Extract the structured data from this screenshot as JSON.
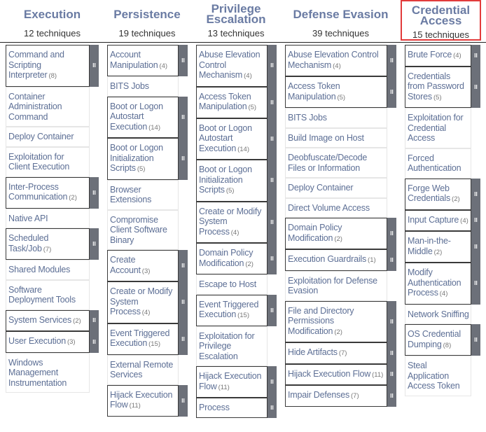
{
  "tactics": [
    {
      "title": "Execution",
      "count": "12 techniques",
      "selected": false,
      "techniques": [
        {
          "name": "Command and Scripting Interpreter",
          "count": "(8)",
          "sub": true
        },
        {
          "name": "Container Administration Command",
          "sub": false
        },
        {
          "name": "Deploy Container",
          "sub": false
        },
        {
          "name": "Exploitation for Client Execution",
          "sub": false
        },
        {
          "name": "Inter-Process Communication",
          "count": "(2)",
          "sub": true
        },
        {
          "name": "Native API",
          "sub": false
        },
        {
          "name": "Scheduled Task/Job",
          "count": "(7)",
          "sub": true
        },
        {
          "name": "Shared Modules",
          "sub": false
        },
        {
          "name": "Software Deployment Tools",
          "sub": false
        },
        {
          "name": "System Services",
          "count": "(2)",
          "sub": true
        },
        {
          "name": "User Execution",
          "count": "(3)",
          "sub": true
        },
        {
          "name": "Windows Management Instrumentation",
          "sub": false
        }
      ]
    },
    {
      "title": "Persistence",
      "count": "19 techniques",
      "selected": false,
      "techniques": [
        {
          "name": "Account Manipulation",
          "count": "(4)",
          "sub": true
        },
        {
          "name": "BITS Jobs",
          "sub": false
        },
        {
          "name": "Boot or Logon Autostart Execution",
          "count": "(14)",
          "sub": true
        },
        {
          "name": "Boot or Logon Initialization Scripts",
          "count": "(5)",
          "sub": true
        },
        {
          "name": "Browser Extensions",
          "sub": false
        },
        {
          "name": "Compromise Client Software Binary",
          "sub": false
        },
        {
          "name": "Create Account",
          "count": "(3)",
          "sub": true
        },
        {
          "name": "Create or Modify System Process",
          "count": "(4)",
          "sub": true
        },
        {
          "name": "Event Triggered Execution",
          "count": "(15)",
          "sub": true
        },
        {
          "name": "External Remote Services",
          "sub": false
        },
        {
          "name": "Hijack Execution Flow",
          "count": "(11)",
          "sub": true
        }
      ]
    },
    {
      "title": "Privilege Escalation",
      "count": "13 techniques",
      "selected": false,
      "techniques": [
        {
          "name": "Abuse Elevation Control Mechanism",
          "count": "(4)",
          "sub": true
        },
        {
          "name": "Access Token Manipulation",
          "count": "(5)",
          "sub": true
        },
        {
          "name": "Boot or Logon Autostart Execution",
          "count": "(14)",
          "sub": true
        },
        {
          "name": "Boot or Logon Initialization Scripts",
          "count": "(5)",
          "sub": true
        },
        {
          "name": "Create or Modify System Process",
          "count": "(4)",
          "sub": true
        },
        {
          "name": "Domain Policy Modification",
          "count": "(2)",
          "sub": true
        },
        {
          "name": "Escape to Host",
          "sub": false
        },
        {
          "name": "Event Triggered Execution",
          "count": "(15)",
          "sub": true
        },
        {
          "name": "Exploitation for Privilege Escalation",
          "sub": false
        },
        {
          "name": "Hijack Execution Flow",
          "count": "(11)",
          "sub": true
        },
        {
          "name": "Process",
          "sub": true
        }
      ]
    },
    {
      "title": "Defense Evasion",
      "count": "39 techniques",
      "selected": false,
      "techniques": [
        {
          "name": "Abuse Elevation Control Mechanism",
          "count": "(4)",
          "sub": true
        },
        {
          "name": "Access Token Manipulation",
          "count": "(5)",
          "sub": true
        },
        {
          "name": "BITS Jobs",
          "sub": false
        },
        {
          "name": "Build Image on Host",
          "sub": false
        },
        {
          "name": "Deobfuscate/Decode Files or Information",
          "sub": false
        },
        {
          "name": "Deploy Container",
          "sub": false
        },
        {
          "name": "Direct Volume Access",
          "sub": false
        },
        {
          "name": "Domain Policy Modification",
          "count": "(2)",
          "sub": true
        },
        {
          "name": "Execution Guardrails",
          "count": "(1)",
          "sub": true
        },
        {
          "name": "Exploitation for Defense Evasion",
          "sub": false
        },
        {
          "name": "File and Directory Permissions Modification",
          "count": "(2)",
          "sub": true
        },
        {
          "name": "Hide Artifacts",
          "count": "(7)",
          "sub": true
        },
        {
          "name": "Hijack Execution Flow",
          "count": "(11)",
          "sub": true
        },
        {
          "name": "Impair Defenses",
          "count": "(7)",
          "sub": true
        }
      ]
    },
    {
      "title": "Credential Access",
      "count": "15 techniques",
      "selected": true,
      "techniques": [
        {
          "name": "Brute Force",
          "count": "(4)",
          "sub": true
        },
        {
          "name": "Credentials from Password Stores",
          "count": "(5)",
          "sub": true
        },
        {
          "name": "Exploitation for Credential Access",
          "sub": false
        },
        {
          "name": "Forced Authentication",
          "sub": false
        },
        {
          "name": "Forge Web Credentials",
          "count": "(2)",
          "sub": true
        },
        {
          "name": "Input Capture",
          "count": "(4)",
          "sub": true
        },
        {
          "name": "Man-in-the-Middle",
          "count": "(2)",
          "sub": true
        },
        {
          "name": "Modify Authentication Process",
          "count": "(4)",
          "sub": true
        },
        {
          "name": "Network Sniffing",
          "sub": false
        },
        {
          "name": "OS Credential Dumping",
          "count": "(8)",
          "sub": true
        },
        {
          "name": "Steal Application Access Token",
          "sub": false
        }
      ]
    }
  ],
  "handle_glyph": "II",
  "colors": {
    "title": "#6a7ba3",
    "technique": "#5d6f95",
    "handle": "#6c7079",
    "selected_border": "#e23b3b"
  }
}
